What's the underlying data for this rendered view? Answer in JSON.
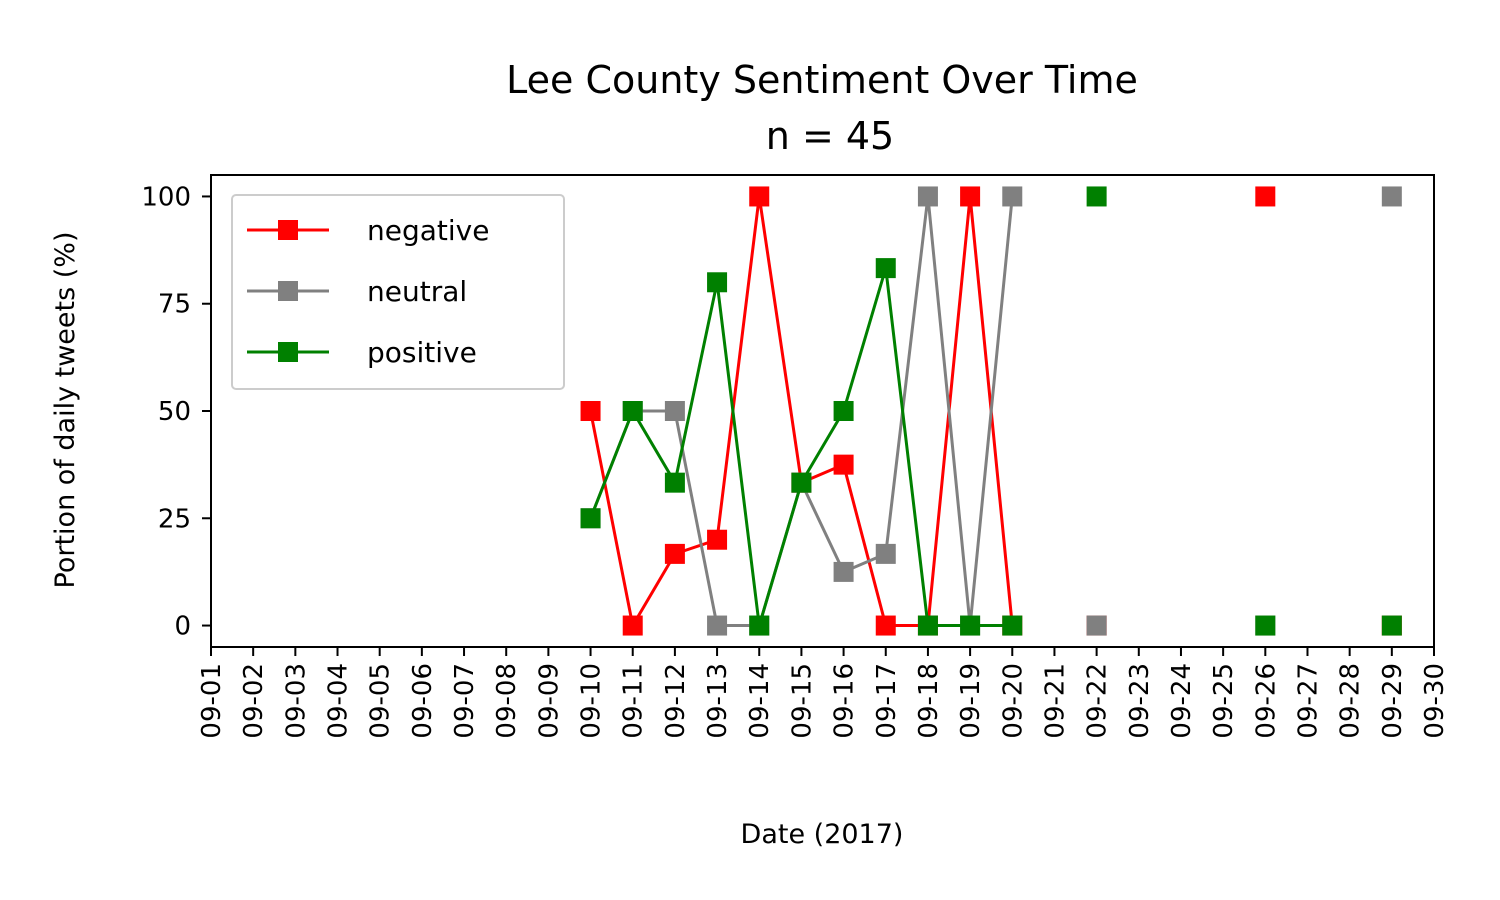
{
  "chart_data": {
    "type": "line",
    "title": "Lee County Sentiment Over Time",
    "subtitle": "n = 45",
    "xlabel": "Date (2017)",
    "ylabel": "Portion of daily tweets (%)",
    "x_ticks": [
      "09-01",
      "09-02",
      "09-03",
      "09-04",
      "09-05",
      "09-06",
      "09-07",
      "09-08",
      "09-09",
      "09-10",
      "09-11",
      "09-12",
      "09-13",
      "09-14",
      "09-15",
      "09-16",
      "09-17",
      "09-18",
      "09-19",
      "09-20",
      "09-21",
      "09-22",
      "09-23",
      "09-24",
      "09-25",
      "09-26",
      "09-27",
      "09-28",
      "09-29",
      "09-30"
    ],
    "y_ticks": [
      0,
      25,
      50,
      75,
      100
    ],
    "ylim": [
      -5,
      105
    ],
    "xlim": [
      "09-01",
      "09-30"
    ],
    "grid": false,
    "legend_position": "upper-left",
    "marker": "square",
    "series": [
      {
        "name": "negative",
        "color": "#ff0000",
        "points": [
          {
            "x": "09-10",
            "y": 50
          },
          {
            "x": "09-11",
            "y": 0
          },
          {
            "x": "09-12",
            "y": 16.7
          },
          {
            "x": "09-13",
            "y": 20
          },
          {
            "x": "09-14",
            "y": 100
          },
          {
            "x": "09-15",
            "y": 33.3
          },
          {
            "x": "09-16",
            "y": 37.5
          },
          {
            "x": "09-17",
            "y": 0
          },
          {
            "x": "09-18",
            "y": 0
          },
          {
            "x": "09-19",
            "y": 100
          },
          {
            "x": "09-20",
            "y": 0
          },
          {
            "x": "09-22",
            "y": 0
          },
          {
            "x": "09-26",
            "y": 100
          },
          {
            "x": "09-29",
            "y": 0
          }
        ]
      },
      {
        "name": "neutral",
        "color": "#808080",
        "points": [
          {
            "x": "09-10",
            "y": 25
          },
          {
            "x": "09-11",
            "y": 50
          },
          {
            "x": "09-12",
            "y": 50
          },
          {
            "x": "09-13",
            "y": 0
          },
          {
            "x": "09-14",
            "y": 0
          },
          {
            "x": "09-15",
            "y": 33.3
          },
          {
            "x": "09-16",
            "y": 12.5
          },
          {
            "x": "09-17",
            "y": 16.7
          },
          {
            "x": "09-18",
            "y": 100
          },
          {
            "x": "09-19",
            "y": 0
          },
          {
            "x": "09-20",
            "y": 100
          },
          {
            "x": "09-22",
            "y": 0
          },
          {
            "x": "09-26",
            "y": 0
          },
          {
            "x": "09-29",
            "y": 100
          }
        ]
      },
      {
        "name": "positive",
        "color": "#008000",
        "points": [
          {
            "x": "09-10",
            "y": 25
          },
          {
            "x": "09-11",
            "y": 50
          },
          {
            "x": "09-12",
            "y": 33.3
          },
          {
            "x": "09-13",
            "y": 80
          },
          {
            "x": "09-14",
            "y": 0
          },
          {
            "x": "09-15",
            "y": 33.3
          },
          {
            "x": "09-16",
            "y": 50
          },
          {
            "x": "09-17",
            "y": 83.3
          },
          {
            "x": "09-18",
            "y": 0
          },
          {
            "x": "09-19",
            "y": 0
          },
          {
            "x": "09-20",
            "y": 0
          },
          {
            "x": "09-22",
            "y": 100
          },
          {
            "x": "09-26",
            "y": 0
          },
          {
            "x": "09-29",
            "y": 0
          }
        ]
      }
    ]
  }
}
